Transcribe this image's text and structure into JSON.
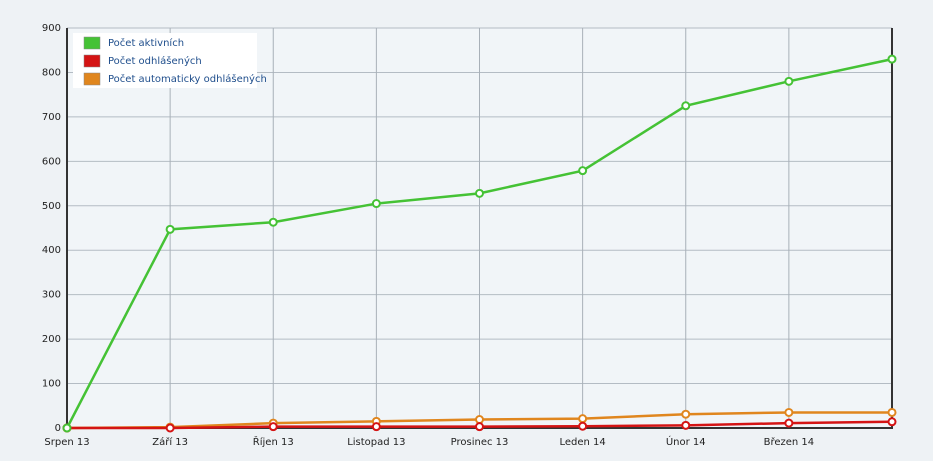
{
  "chart_data": {
    "type": "line",
    "categories": [
      "Srpen 13",
      "Září 13",
      "Říjen 13",
      "Listopad 13",
      "Prosinec 13",
      "Leden 14",
      "Únor 14",
      "Březen 14",
      null
    ],
    "series": [
      {
        "name": "Počet aktivních",
        "color": "#45c235",
        "values": [
          0,
          447,
          463,
          505,
          528,
          579,
          725,
          780,
          830
        ]
      },
      {
        "name": "Počet odhlášených",
        "color": "#d41414",
        "values": [
          0,
          0,
          3,
          3,
          3,
          4,
          6,
          11,
          14
        ]
      },
      {
        "name": "Počet automaticky odhlášených",
        "color": "#e0861e",
        "values": [
          0,
          2,
          11,
          15,
          19,
          21,
          31,
          35,
          35
        ]
      }
    ],
    "ylim": [
      0,
      900
    ],
    "yticks": [
      0,
      100,
      200,
      300,
      400,
      500,
      600,
      700,
      800,
      900
    ],
    "grid": true
  }
}
